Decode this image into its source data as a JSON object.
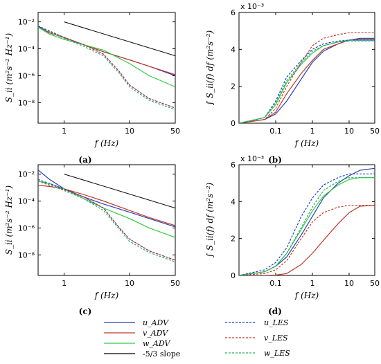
{
  "figure": {
    "panel_labels": [
      "(a)",
      "(b)",
      "(c)",
      "(d)"
    ],
    "xlabel": "f (Hz)",
    "ylabel_spectrum": "S_ii (m²s⁻² Hz⁻¹)",
    "ylabel_cumulative": "∫ S_ii(f) df (m²s⁻²)",
    "exponent_label": "x 10⁻³",
    "legend": [
      {
        "key": "u_adv",
        "label": "u_ADV",
        "color": "#2b3fb0",
        "dash": false
      },
      {
        "key": "v_adv",
        "label": "v_ADV",
        "color": "#c0392b",
        "dash": false
      },
      {
        "key": "w_adv",
        "label": "w_ADV",
        "color": "#2ecc40",
        "dash": false
      },
      {
        "key": "slope",
        "label": "-5/3 slope",
        "color": "#000000",
        "dash": false
      },
      {
        "key": "u_les",
        "label": "u_LES",
        "color": "#1f3fdc",
        "dash": true
      },
      {
        "key": "v_les",
        "label": "v_LES",
        "color": "#c0392b",
        "dash": true
      },
      {
        "key": "w_les",
        "label": "w_LES",
        "color": "#27ae60",
        "dash": true
      }
    ]
  },
  "chart_data": [
    {
      "id": "a",
      "type": "line",
      "xscale": "log",
      "yscale": "log",
      "xlim": [
        0.4,
        50
      ],
      "ylim": [
        3e-10,
        0.05
      ],
      "xticks": [
        1,
        10,
        50
      ],
      "xticklabels": [
        "1",
        "10",
        "50"
      ],
      "yticks": [
        1e-08,
        1e-06,
        0.0001,
        0.01
      ],
      "yticklabels": [
        "10⁻⁸",
        "10⁻⁶",
        "10⁻⁴",
        "10⁻²"
      ],
      "xlabel": "f (Hz)",
      "ylabel": "S_ii (m²s⁻² Hz⁻¹)",
      "slope_line": {
        "x": [
          1,
          50
        ],
        "y": [
          0.01,
          3e-05
        ]
      },
      "series": [
        {
          "key": "u_adv",
          "x": [
            0.4,
            0.6,
            1,
            2,
            4,
            10,
            20,
            50
          ],
          "y": [
            0.005,
            0.0015,
            0.0007,
            0.0002,
            6e-05,
            1.5e-05,
            5e-06,
            1e-06
          ]
        },
        {
          "key": "v_adv",
          "x": [
            0.4,
            0.6,
            1,
            2,
            4,
            10,
            20,
            50
          ],
          "y": [
            0.004,
            0.0015,
            0.0007,
            0.0002,
            6e-05,
            1.5e-05,
            5e-06,
            1.2e-06
          ]
        },
        {
          "key": "w_adv",
          "x": [
            0.4,
            0.6,
            1,
            2,
            4,
            10,
            20,
            50
          ],
          "y": [
            0.004,
            0.0012,
            0.0005,
            0.0002,
            8e-05,
            8e-06,
            1e-06,
            1.5e-07
          ]
        },
        {
          "key": "u_les",
          "x": [
            0.4,
            1,
            2,
            4,
            7,
            10,
            20,
            50
          ],
          "y": [
            0.005,
            0.0007,
            0.0002,
            4e-05,
            2e-06,
            2e-07,
            2e-08,
            4e-09
          ]
        },
        {
          "key": "v_les",
          "x": [
            0.4,
            1,
            2,
            4,
            7,
            10,
            20,
            50
          ],
          "y": [
            0.004,
            0.0007,
            0.0002,
            4e-05,
            2e-06,
            2e-07,
            2e-08,
            4e-09
          ]
        },
        {
          "key": "w_les",
          "x": [
            0.4,
            1,
            2,
            4,
            7,
            10,
            20,
            50
          ],
          "y": [
            0.004,
            0.0006,
            0.00015,
            3e-05,
            1.5e-06,
            1.5e-07,
            1.5e-08,
            3e-09
          ]
        }
      ]
    },
    {
      "id": "b",
      "type": "line",
      "xscale": "log",
      "yscale": "linear",
      "xlim": [
        0.01,
        50
      ],
      "ylim": [
        0,
        6
      ],
      "xticks": [
        0.1,
        1,
        10,
        50
      ],
      "xticklabels": [
        "0.1",
        "1",
        "10",
        "50"
      ],
      "yticks": [
        0,
        2,
        4,
        6
      ],
      "yticklabels": [
        "0",
        "2",
        "4",
        "6"
      ],
      "xlabel": "f (Hz)",
      "ylabel": "∫ S_ii(f) df (m²s⁻²)",
      "y_multiplier": "x 10⁻³",
      "series": [
        {
          "key": "u_adv",
          "x": [
            0.01,
            0.05,
            0.1,
            0.2,
            0.5,
            1,
            2,
            5,
            10,
            20,
            50
          ],
          "y": [
            0,
            0.2,
            0.5,
            1.2,
            2.4,
            3.3,
            3.9,
            4.3,
            4.5,
            4.6,
            4.6
          ]
        },
        {
          "key": "v_adv",
          "x": [
            0.01,
            0.05,
            0.1,
            0.2,
            0.5,
            1,
            2,
            5,
            10,
            20,
            50
          ],
          "y": [
            0,
            0.2,
            0.6,
            1.6,
            2.7,
            3.4,
            4.0,
            4.3,
            4.5,
            4.55,
            4.55
          ]
        },
        {
          "key": "w_adv",
          "x": [
            0.01,
            0.05,
            0.1,
            0.2,
            0.5,
            1,
            2,
            5,
            10,
            20,
            50
          ],
          "y": [
            0,
            0.3,
            1.0,
            2.2,
            3.2,
            3.8,
            4.2,
            4.4,
            4.5,
            4.5,
            4.5
          ]
        },
        {
          "key": "u_les",
          "x": [
            0.01,
            0.05,
            0.1,
            0.2,
            0.5,
            1,
            2,
            5,
            10,
            20,
            50
          ],
          "y": [
            0,
            0.3,
            1.2,
            2.5,
            3.4,
            4.0,
            4.3,
            4.45,
            4.5,
            4.5,
            4.5
          ]
        },
        {
          "key": "v_les",
          "x": [
            0.01,
            0.05,
            0.1,
            0.2,
            0.5,
            1,
            2,
            5,
            10,
            20,
            50
          ],
          "y": [
            0,
            0.2,
            0.8,
            2.0,
            3.3,
            4.2,
            4.6,
            4.8,
            4.9,
            4.9,
            4.9
          ]
        },
        {
          "key": "w_les",
          "x": [
            0.01,
            0.05,
            0.1,
            0.2,
            0.5,
            1,
            2,
            5,
            10,
            20,
            50
          ],
          "y": [
            0,
            0.3,
            1.1,
            2.3,
            3.3,
            3.9,
            4.2,
            4.4,
            4.45,
            4.45,
            4.45
          ]
        }
      ]
    },
    {
      "id": "c",
      "type": "line",
      "xscale": "log",
      "yscale": "log",
      "xlim": [
        0.4,
        50
      ],
      "ylim": [
        3e-10,
        0.05
      ],
      "xticks": [
        1,
        10,
        50
      ],
      "xticklabels": [
        "1",
        "10",
        "50"
      ],
      "yticks": [
        1e-08,
        1e-06,
        0.0001,
        0.01
      ],
      "yticklabels": [
        "10⁻⁸",
        "10⁻⁶",
        "10⁻⁴",
        "10⁻²"
      ],
      "xlabel": "f (Hz)",
      "ylabel": "S_ii (m²s⁻² Hz⁻¹)",
      "slope_line": {
        "x": [
          1,
          50
        ],
        "y": [
          0.01,
          3e-05
        ]
      },
      "series": [
        {
          "key": "u_adv",
          "x": [
            0.4,
            0.6,
            1,
            2,
            4,
            10,
            20,
            50
          ],
          "y": [
            0.02,
            0.004,
            0.0008,
            0.0002,
            6e-05,
            1.5e-05,
            5e-06,
            1.2e-06
          ]
        },
        {
          "key": "v_adv",
          "x": [
            0.4,
            0.6,
            1,
            2,
            4,
            10,
            20,
            50
          ],
          "y": [
            0.0015,
            0.0012,
            0.0008,
            0.0003,
            0.0001,
            2e-05,
            6e-06,
            1.5e-06
          ]
        },
        {
          "key": "w_adv",
          "x": [
            0.4,
            0.6,
            1,
            2,
            4,
            10,
            20,
            50
          ],
          "y": [
            0.003,
            0.002,
            0.0008,
            0.00015,
            3e-05,
            5e-06,
            1e-06,
            2e-07
          ]
        },
        {
          "key": "u_les",
          "x": [
            0.4,
            1,
            2,
            4,
            7,
            10,
            20,
            50
          ],
          "y": [
            0.004,
            0.0008,
            0.0002,
            3e-05,
            1e-06,
            1.5e-07,
            2e-08,
            4e-09
          ]
        },
        {
          "key": "v_les",
          "x": [
            0.4,
            1,
            2,
            4,
            7,
            10,
            20,
            50
          ],
          "y": [
            0.003,
            0.0007,
            0.0002,
            3e-05,
            1e-06,
            1.5e-07,
            2e-08,
            4e-09
          ]
        },
        {
          "key": "w_les",
          "x": [
            0.4,
            1,
            2,
            4,
            7,
            10,
            20,
            50
          ],
          "y": [
            0.003,
            0.0006,
            0.00015,
            2e-05,
            8e-07,
            1e-07,
            1.5e-08,
            3e-09
          ]
        }
      ]
    },
    {
      "id": "d",
      "type": "line",
      "xscale": "log",
      "yscale": "linear",
      "xlim": [
        0.01,
        50
      ],
      "ylim": [
        0,
        6
      ],
      "xticks": [
        0.1,
        1,
        10,
        50
      ],
      "xticklabels": [
        "0.1",
        "1",
        "10",
        "50"
      ],
      "yticks": [
        0,
        2,
        4,
        6
      ],
      "yticklabels": [
        "0",
        "2",
        "4",
        "6"
      ],
      "xlabel": "f (Hz)",
      "ylabel": "∫ S_ii(f) df (m²s⁻²)",
      "y_multiplier": "x 10⁻³",
      "series": [
        {
          "key": "u_adv",
          "x": [
            0.01,
            0.05,
            0.1,
            0.2,
            0.5,
            1,
            2,
            5,
            10,
            20,
            50
          ],
          "y": [
            0,
            0.2,
            0.5,
            1.0,
            2.2,
            3.2,
            4.2,
            5.0,
            5.4,
            5.7,
            5.8
          ]
        },
        {
          "key": "v_adv",
          "x": [
            0.01,
            0.05,
            0.1,
            0.2,
            0.5,
            1,
            2,
            5,
            10,
            20,
            50
          ],
          "y": [
            0,
            0,
            0.02,
            0.1,
            0.6,
            1.2,
            1.9,
            2.8,
            3.4,
            3.75,
            3.8
          ]
        },
        {
          "key": "w_adv",
          "x": [
            0.01,
            0.05,
            0.1,
            0.2,
            0.5,
            1,
            2,
            5,
            10,
            20,
            50
          ],
          "y": [
            0,
            0.2,
            0.5,
            1.2,
            2.5,
            3.5,
            4.3,
            4.9,
            5.2,
            5.3,
            5.3
          ]
        },
        {
          "key": "u_les",
          "x": [
            0.01,
            0.05,
            0.1,
            0.2,
            0.5,
            1,
            2,
            5,
            10,
            20,
            50
          ],
          "y": [
            0,
            0.3,
            0.7,
            1.5,
            3.2,
            4.2,
            4.9,
            5.3,
            5.5,
            5.5,
            5.5
          ]
        },
        {
          "key": "v_les",
          "x": [
            0.01,
            0.05,
            0.1,
            0.2,
            0.5,
            1,
            2,
            5,
            10,
            20,
            50
          ],
          "y": [
            0,
            0.1,
            0.3,
            0.8,
            2.0,
            2.9,
            3.4,
            3.7,
            3.8,
            3.8,
            3.8
          ]
        },
        {
          "key": "w_les",
          "x": [
            0.01,
            0.05,
            0.1,
            0.2,
            0.5,
            1,
            2,
            5,
            10,
            20,
            50
          ],
          "y": [
            0,
            0.2,
            0.5,
            1.2,
            2.6,
            3.7,
            4.6,
            5.1,
            5.3,
            5.3,
            5.3
          ]
        }
      ]
    }
  ]
}
